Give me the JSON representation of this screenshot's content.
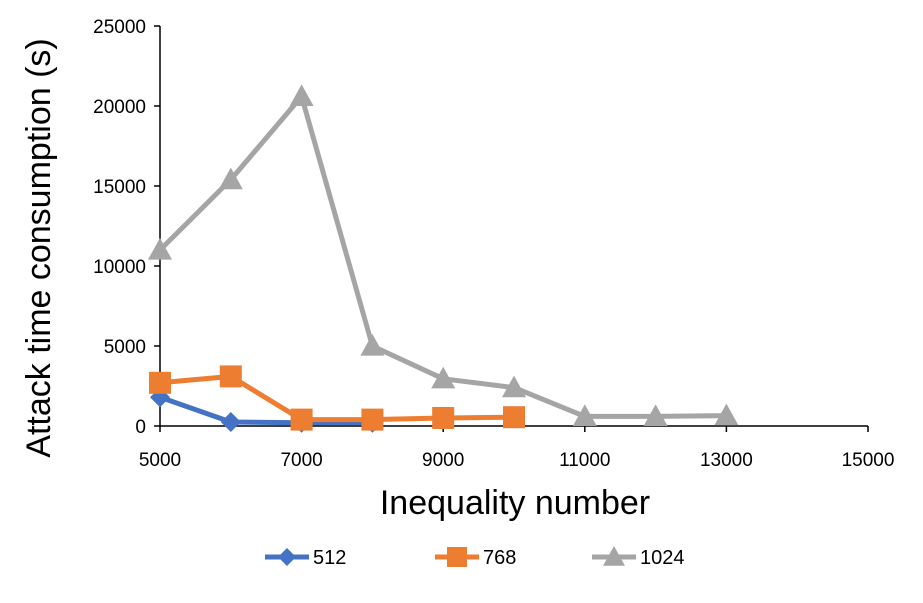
{
  "chart_data": {
    "type": "line",
    "title": "",
    "xlabel": "Inequality number",
    "ylabel": "Attack time consumption (s)",
    "xlim": [
      5000,
      15000
    ],
    "ylim": [
      0,
      25000
    ],
    "x_ticks": [
      5000,
      7000,
      9000,
      11000,
      13000,
      15000
    ],
    "y_ticks": [
      0,
      5000,
      10000,
      15000,
      20000,
      25000
    ],
    "grid": false,
    "legend_position": "bottom",
    "series": [
      {
        "name": "512",
        "color": "#4472C4",
        "marker": "diamond",
        "x": [
          5000,
          6000,
          7000,
          8000
        ],
        "y": [
          1800,
          250,
          200,
          200
        ]
      },
      {
        "name": "768",
        "color": "#ED7D31",
        "marker": "square",
        "x": [
          5000,
          6000,
          7000,
          8000,
          9000,
          10000
        ],
        "y": [
          2700,
          3100,
          400,
          400,
          500,
          550
        ]
      },
      {
        "name": "1024",
        "color": "#A5A5A5",
        "marker": "triangle",
        "x": [
          5000,
          6000,
          7000,
          8000,
          9000,
          10000,
          11000,
          12000,
          13000
        ],
        "y": [
          11000,
          15400,
          20600,
          5000,
          2950,
          2400,
          600,
          600,
          650
        ]
      }
    ]
  }
}
